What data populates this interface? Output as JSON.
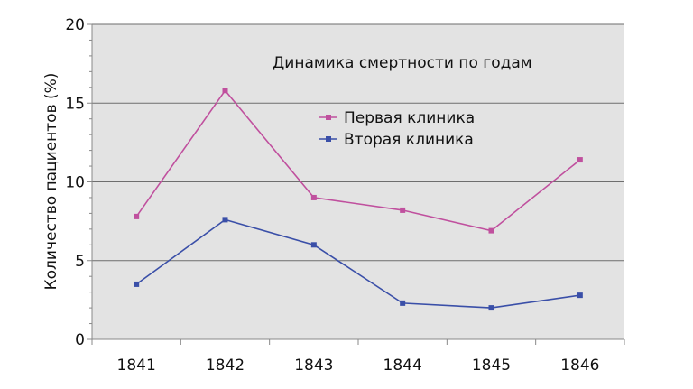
{
  "chart_data": {
    "type": "line",
    "title": "Динамика смертности по годам",
    "xlabel": "",
    "ylabel": "Количество пациентов (%)",
    "ylim": [
      0,
      20
    ],
    "yticks": [
      0,
      5,
      10,
      15,
      20
    ],
    "categories": [
      "1841",
      "1842",
      "1843",
      "1844",
      "1845",
      "1846"
    ],
    "series": [
      {
        "name": "Первая клиника",
        "color": "#c0509e",
        "values": [
          7.8,
          15.8,
          9.0,
          8.2,
          6.9,
          11.4
        ]
      },
      {
        "name": "Вторая клиника",
        "color": "#3a4fa8",
        "values": [
          3.5,
          7.6,
          6.0,
          2.3,
          2.0,
          2.8
        ]
      }
    ],
    "grid": true,
    "plot_background": "#e3e3e3",
    "legend_position": "top-center inside plot"
  }
}
